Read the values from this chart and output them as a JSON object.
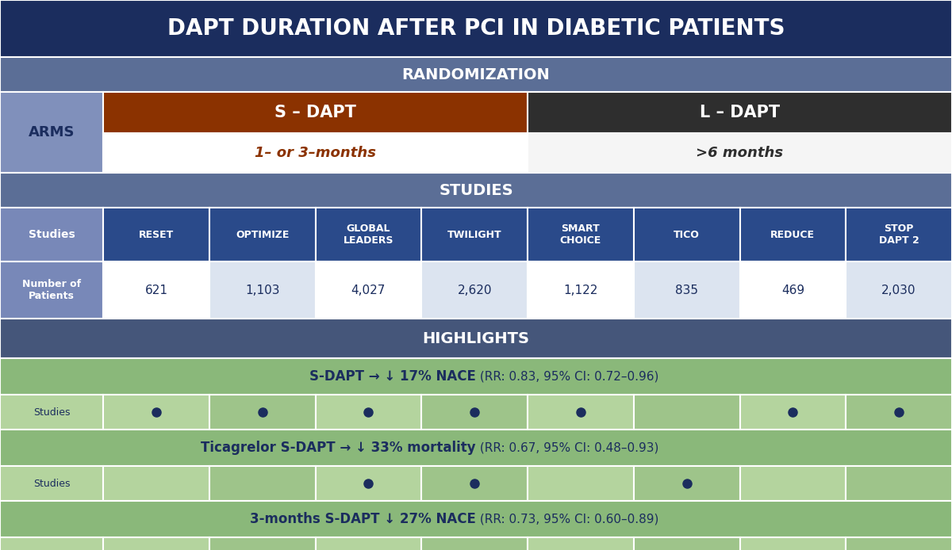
{
  "title": "DAPT DURATION AFTER PCI IN DIABETIC PATIENTS",
  "title_bg": "#1b2d5e",
  "title_color": "#ffffff",
  "randomization_label": "RANDOMIZATION",
  "randomization_bg": "#5b6e96",
  "randomization_color": "#ffffff",
  "arms_label": "ARMS",
  "arms_bg": "#8090bb",
  "arms_color": "#1b2d5e",
  "s_dapt_label": "S – DAPT",
  "s_dapt_bg": "#8b3200",
  "s_dapt_color": "#ffffff",
  "s_dapt_sub": "1– or 3–months",
  "s_dapt_sub_color": "#8b3200",
  "s_dapt_sub_bg": "#ffffff",
  "l_dapt_label": "L – DAPT",
  "l_dapt_bg": "#2e2e2e",
  "l_dapt_color": "#ffffff",
  "l_dapt_sub": ">6 months",
  "l_dapt_sub_color": "#2e2e2e",
  "l_dapt_sub_bg": "#f5f5f5",
  "studies_section_label": "STUDIES",
  "studies_section_bg": "#5b6e96",
  "studies_section_color": "#ffffff",
  "studies_label": "Studies",
  "patients_label": "Number of\nPatients",
  "label_bg": "#7888b8",
  "label_color": "#ffffff",
  "study_names": [
    "RESET",
    "OPTIMIZE",
    "GLOBAL\nLEADERS",
    "TWILIGHT",
    "SMART\nCHOICE",
    "TICO",
    "REDUCE",
    "STOP\nDAPT 2"
  ],
  "study_bg": "#2a4a8a",
  "study_color": "#ffffff",
  "patient_numbers": [
    "621",
    "1,103",
    "4,027",
    "2,620",
    "1,122",
    "835",
    "469",
    "2,030"
  ],
  "patient_bg": "#ffffff",
  "patient_alt_bg": "#dce4f0",
  "patient_color": "#1b2d5e",
  "highlights_label": "HIGHLIGHTS",
  "highlights_bg": "#45567a",
  "highlights_color": "#ffffff",
  "highlight1_bold": "S-DAPT → ↓ 17% NACE",
  "highlight1_normal": " (RR: 0.83, 95% CI: 0.72–0.96)",
  "highlight1_dots": [
    true,
    true,
    true,
    true,
    true,
    false,
    true,
    true
  ],
  "highlight2_bold": "Ticagrelor S-DAPT → ↓ 33% mortality",
  "highlight2_normal": " (RR: 0.67, 95% CI: 0.48–0.93)",
  "highlight2_dots": [
    false,
    false,
    true,
    true,
    false,
    true,
    false,
    false
  ],
  "highlight3_bold": "3-months S-DAPT ↓ 27% NACE",
  "highlight3_normal": " (RR: 0.73, 95% CI: 0.60–0.89)",
  "highlight3_dots": [
    true,
    true,
    false,
    true,
    true,
    true,
    true,
    false
  ],
  "highlight_row_bg": "#8ab87a",
  "highlight_studies_bg_even": "#b4d49e",
  "highlight_studies_bg_odd": "#9ec48a",
  "highlight_text_color": "#1b2d5e",
  "dot_color": "#1b2d5e",
  "ec_color": "#ffffff",
  "lw": 1.5
}
